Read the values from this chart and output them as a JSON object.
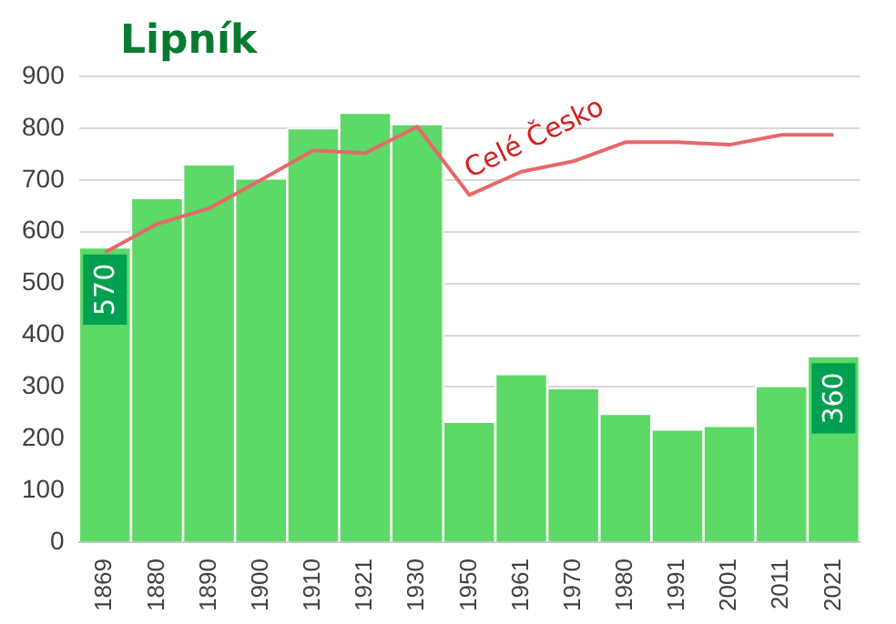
{
  "chart_data": {
    "type": "bar",
    "title": "Lipník",
    "categories": [
      "1869",
      "1880",
      "1890",
      "1900",
      "1910",
      "1921",
      "1930",
      "1950",
      "1961",
      "1970",
      "1980",
      "1991",
      "2001",
      "2011",
      "2021"
    ],
    "series": [
      {
        "color": "#5cd966",
        "values": [
          570,
          665,
          730,
          703,
          800,
          830,
          808,
          233,
          325,
          298,
          248,
          218,
          225,
          302,
          360
        ],
        "value_labels": [
          "570",
          null,
          null,
          null,
          null,
          null,
          null,
          null,
          null,
          null,
          null,
          null,
          null,
          null,
          "360"
        ]
      },
      {
        "type": "line",
        "name": "Celé Česko",
        "color": "#e8676a",
        "values": [
          560,
          615,
          645,
          700,
          757,
          752,
          803,
          671,
          716,
          736,
          773,
          773,
          768,
          787,
          787
        ]
      }
    ],
    "ylim": [
      0,
      900
    ],
    "yticks": [
      0,
      100,
      200,
      300,
      400,
      500,
      600,
      700,
      800,
      900
    ],
    "grid": "y",
    "legend": false,
    "marker": "none"
  }
}
